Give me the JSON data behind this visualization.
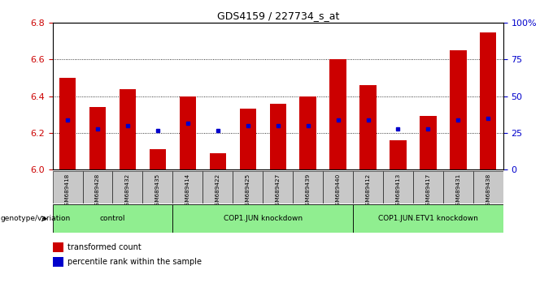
{
  "title": "GDS4159 / 227734_s_at",
  "samples": [
    "GSM689418",
    "GSM689428",
    "GSM689432",
    "GSM689435",
    "GSM689414",
    "GSM689422",
    "GSM689425",
    "GSM689427",
    "GSM689439",
    "GSM689440",
    "GSM689412",
    "GSM689413",
    "GSM689417",
    "GSM689431",
    "GSM689438"
  ],
  "bar_values": [
    6.5,
    6.34,
    6.44,
    6.11,
    6.4,
    6.09,
    6.33,
    6.36,
    6.4,
    6.6,
    6.46,
    6.16,
    6.29,
    6.65,
    6.75
  ],
  "percentile_values": [
    6.27,
    6.22,
    6.24,
    6.21,
    6.25,
    6.21,
    6.24,
    6.24,
    6.24,
    6.27,
    6.27,
    6.22,
    6.22,
    6.27,
    6.28
  ],
  "groups": [
    {
      "label": "control",
      "start": 0,
      "end": 4
    },
    {
      "label": "COP1.JUN knockdown",
      "start": 4,
      "end": 10
    },
    {
      "label": "COP1.JUN.ETV1 knockdown",
      "start": 10,
      "end": 15
    }
  ],
  "ylim": [
    6.0,
    6.8
  ],
  "y_ticks": [
    6.0,
    6.2,
    6.4,
    6.6,
    6.8
  ],
  "right_ticks": [
    0,
    25,
    50,
    75,
    100
  ],
  "right_tick_labels": [
    "0",
    "25",
    "50",
    "75",
    "100%"
  ],
  "bar_color": "#cc0000",
  "dot_color": "#0000cc",
  "bar_width": 0.55,
  "group_bg": "#90EE90",
  "tick_bg": "#c8c8c8",
  "ylabel_color": "#cc0000",
  "right_ylabel_color": "#0000cc",
  "genotype_label": "genotype/variation",
  "legend_bar_label": "transformed count",
  "legend_dot_label": "percentile rank within the sample"
}
